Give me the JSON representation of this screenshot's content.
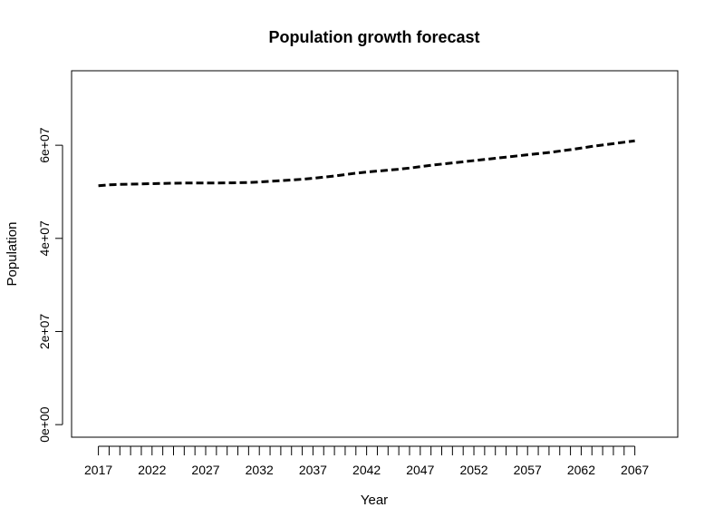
{
  "chart_data": {
    "type": "line",
    "title": "Population growth forecast",
    "xlabel": "Year",
    "ylabel": "Population",
    "xlim": [
      2014.5,
      2071
    ],
    "ylim": [
      -2700000,
      76000000
    ],
    "x_tick_labels": [
      "2017",
      "2022",
      "2027",
      "2032",
      "2037",
      "2042",
      "2047",
      "2052",
      "2057",
      "2062",
      "2067"
    ],
    "y_tick_labels": [
      "0e+00",
      "2e+07",
      "4e+07",
      "6e+07"
    ],
    "y_tick_values": [
      0,
      20000000,
      40000000,
      60000000
    ],
    "grid": false,
    "line_style": "dashed",
    "line_color": "#000000",
    "series": [
      {
        "x": [
          2017,
          2018,
          2019,
          2020,
          2021,
          2022,
          2023,
          2024,
          2025,
          2026,
          2027,
          2028,
          2029,
          2030,
          2031,
          2032,
          2033,
          2034,
          2035,
          2036,
          2037,
          2038,
          2039,
          2040,
          2041,
          2042,
          2043,
          2044,
          2045,
          2046,
          2047,
          2048,
          2049,
          2050,
          2051,
          2052,
          2053,
          2054,
          2055,
          2056,
          2057,
          2058,
          2059,
          2060,
          2061,
          2062,
          2063,
          2064,
          2065,
          2066,
          2067
        ],
        "values": [
          51300000,
          51500000,
          51600000,
          51650000,
          51700000,
          51750000,
          51800000,
          51850000,
          51880000,
          51900000,
          51900000,
          51900000,
          51920000,
          51950000,
          52000000,
          52100000,
          52250000,
          52400000,
          52550000,
          52700000,
          52900000,
          53150000,
          53400000,
          53700000,
          54000000,
          54250000,
          54450000,
          54650000,
          54850000,
          55100000,
          55400000,
          55700000,
          55950000,
          56200000,
          56450000,
          56700000,
          56950000,
          57200000,
          57450000,
          57700000,
          57950000,
          58200000,
          58450000,
          58750000,
          59050000,
          59400000,
          59750000,
          60050000,
          60350000,
          60650000,
          60950000
        ]
      }
    ]
  }
}
